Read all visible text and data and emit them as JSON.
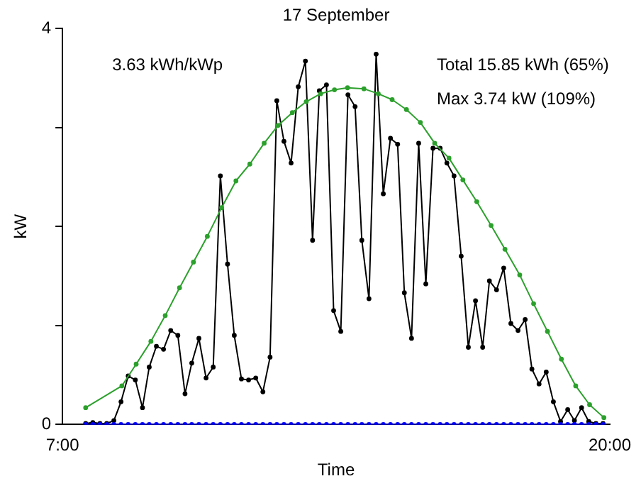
{
  "chart_data": {
    "type": "line",
    "title": "17 September",
    "xlabel": "Time",
    "ylabel": "kW",
    "annotations": [
      "3.63 kWh/kWp",
      "Total 15.85 kWh (65%)",
      "Max 3.74 kW (109%)"
    ],
    "xlim": [
      7,
      20
    ],
    "xticks": [
      {
        "value": 7,
        "label": "7:00"
      },
      {
        "value": 20,
        "label": "20:00"
      }
    ],
    "ylim": [
      0,
      4
    ],
    "yticks": [
      0,
      {
        "value": 1,
        "label": null
      },
      {
        "value": 2,
        "label": null
      },
      {
        "value": 3,
        "label": null
      },
      4
    ],
    "grid": false,
    "legend": false,
    "marker": "circle",
    "line_style": "solid",
    "series": [
      {
        "color": "#0000ff",
        "x": [
          7.55,
          7.72,
          7.89,
          8.05,
          8.22,
          8.39,
          8.56,
          8.73,
          8.9,
          9.06,
          9.23,
          9.4,
          9.57,
          9.74,
          9.91,
          10.07,
          10.24,
          10.41,
          10.58,
          10.75,
          10.92,
          11.08,
          11.25,
          11.42,
          11.59,
          11.76,
          11.93,
          12.09,
          12.26,
          12.43,
          12.6,
          12.77,
          12.94,
          13.1,
          13.27,
          13.44,
          13.61,
          13.78,
          13.95,
          14.11,
          14.28,
          14.45,
          14.62,
          14.79,
          14.96,
          15.12,
          15.29,
          15.46,
          15.63,
          15.8,
          15.97,
          16.13,
          16.3,
          16.47,
          16.64,
          16.81,
          16.98,
          17.14,
          17.31,
          17.48,
          17.65,
          17.82,
          17.99,
          18.15,
          18.32,
          18.49,
          18.66,
          18.83,
          19,
          19.16,
          19.33,
          19.5,
          19.67,
          19.84
        ],
        "values": [
          0,
          0,
          0,
          0,
          0,
          0,
          0,
          0,
          0,
          0,
          0,
          0,
          0,
          0,
          0,
          0,
          0,
          0,
          0,
          0,
          0,
          0,
          0,
          0,
          0,
          0,
          0,
          0,
          0,
          0,
          0,
          0,
          0,
          0,
          0,
          0,
          0,
          0,
          0,
          0,
          0,
          0,
          0,
          0,
          0,
          0,
          0,
          0,
          0,
          0,
          0,
          0,
          0,
          0,
          0,
          0,
          0,
          0,
          0,
          0,
          0,
          0,
          0,
          0,
          0,
          0,
          0,
          0,
          0,
          0,
          0,
          0,
          0,
          0
        ]
      },
      {
        "color": "#2ca02c",
        "x": [
          7.55,
          8.41,
          8.75,
          9.1,
          9.44,
          9.78,
          10.11,
          10.44,
          10.78,
          11.12,
          11.45,
          11.79,
          12.12,
          12.46,
          12.79,
          13.13,
          13.46,
          13.77,
          14.16,
          14.5,
          14.83,
          15.17,
          15.5,
          15.84,
          16.18,
          16.51,
          16.84,
          17.18,
          17.51,
          17.86,
          18.19,
          18.52,
          18.85,
          19.19,
          19.52,
          19.86
        ],
        "values": [
          0.17,
          0.39,
          0.61,
          0.84,
          1.1,
          1.38,
          1.64,
          1.9,
          2.19,
          2.46,
          2.63,
          2.84,
          3.02,
          3.15,
          3.26,
          3.34,
          3.38,
          3.4,
          3.39,
          3.34,
          3.28,
          3.18,
          3.05,
          2.84,
          2.69,
          2.47,
          2.25,
          2.01,
          1.77,
          1.51,
          1.22,
          0.94,
          0.66,
          0.39,
          0.2,
          0.07
        ]
      },
      {
        "color": "#000000",
        "x": [
          7.55,
          7.72,
          7.89,
          8.05,
          8.22,
          8.39,
          8.56,
          8.73,
          8.9,
          9.06,
          9.23,
          9.4,
          9.57,
          9.74,
          9.91,
          10.07,
          10.24,
          10.41,
          10.58,
          10.75,
          10.92,
          11.08,
          11.25,
          11.42,
          11.59,
          11.76,
          11.93,
          12.09,
          12.26,
          12.43,
          12.6,
          12.77,
          12.94,
          13.1,
          13.27,
          13.44,
          13.61,
          13.78,
          13.95,
          14.11,
          14.28,
          14.45,
          14.62,
          14.79,
          14.96,
          15.12,
          15.29,
          15.46,
          15.63,
          15.8,
          15.97,
          16.13,
          16.3,
          16.47,
          16.64,
          16.81,
          16.98,
          17.14,
          17.31,
          17.48,
          17.65,
          17.82,
          17.99,
          18.15,
          18.32,
          18.49,
          18.66,
          18.83,
          19,
          19.16,
          19.33,
          19.5,
          19.67,
          19.84
        ],
        "values": [
          0.01,
          0.02,
          0.01,
          0.01,
          0.04,
          0.23,
          0.49,
          0.45,
          0.17,
          0.58,
          0.79,
          0.76,
          0.95,
          0.9,
          0.31,
          0.62,
          0.87,
          0.47,
          0.58,
          2.51,
          1.62,
          0.9,
          0.46,
          0.45,
          0.47,
          0.33,
          0.68,
          3.27,
          2.86,
          2.64,
          3.41,
          3.67,
          1.86,
          3.37,
          3.43,
          1.15,
          0.94,
          3.33,
          3.21,
          1.86,
          1.27,
          3.74,
          2.33,
          2.89,
          2.83,
          1.33,
          0.87,
          2.84,
          1.42,
          2.79,
          2.79,
          2.64,
          2.51,
          1.7,
          0.78,
          1.25,
          0.78,
          1.45,
          1.36,
          1.58,
          1.02,
          0.95,
          1.06,
          0.56,
          0.41,
          0.53,
          0.23,
          0.03,
          0.15,
          0.04,
          0.17,
          0.03,
          0.01,
          0.01
        ]
      }
    ]
  }
}
